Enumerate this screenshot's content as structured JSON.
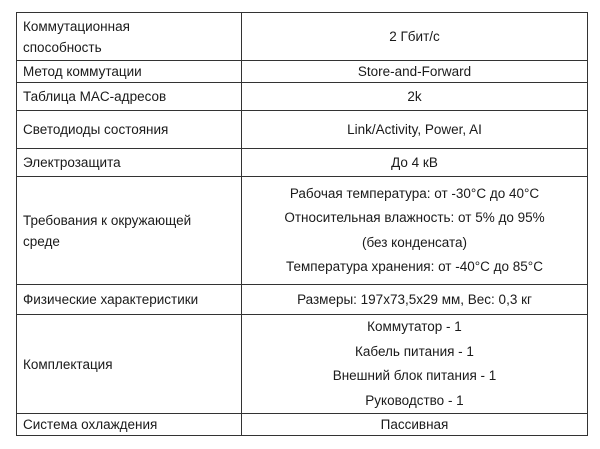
{
  "rows": [
    {
      "key": "Коммутационная способность",
      "values": [
        "2 Гбит/с"
      ]
    },
    {
      "key": "Метод коммутации",
      "values": [
        "Store-and-Forward"
      ]
    },
    {
      "key": "Таблица MAC-адресов",
      "values": [
        "2k"
      ]
    },
    {
      "key": "Светодиоды состояния",
      "values": [
        "Link/Activity, Power, AI"
      ]
    },
    {
      "key": "Электрозащита",
      "values": [
        "До 4 кВ"
      ]
    },
    {
      "key": "Требования к окружающей среде",
      "values": [
        "Рабочая температура: от -30°C до 40°C",
        "Относительная влажность: от 5% до 95%",
        "(без конденсата)",
        "Температура хранения: от -40°C до 85°C"
      ]
    },
    {
      "key": "Физические характеристики",
      "values": [
        "Размеры: 197x73,5x29 мм, Вес: 0,3 кг"
      ]
    },
    {
      "key": "Комплектация",
      "values": [
        "Коммутатор - 1",
        "Кабель питания - 1",
        "Внешний блок питания - 1",
        "Руководство - 1"
      ]
    },
    {
      "key": "Система охлаждения",
      "values": [
        "Пассивная"
      ]
    }
  ]
}
